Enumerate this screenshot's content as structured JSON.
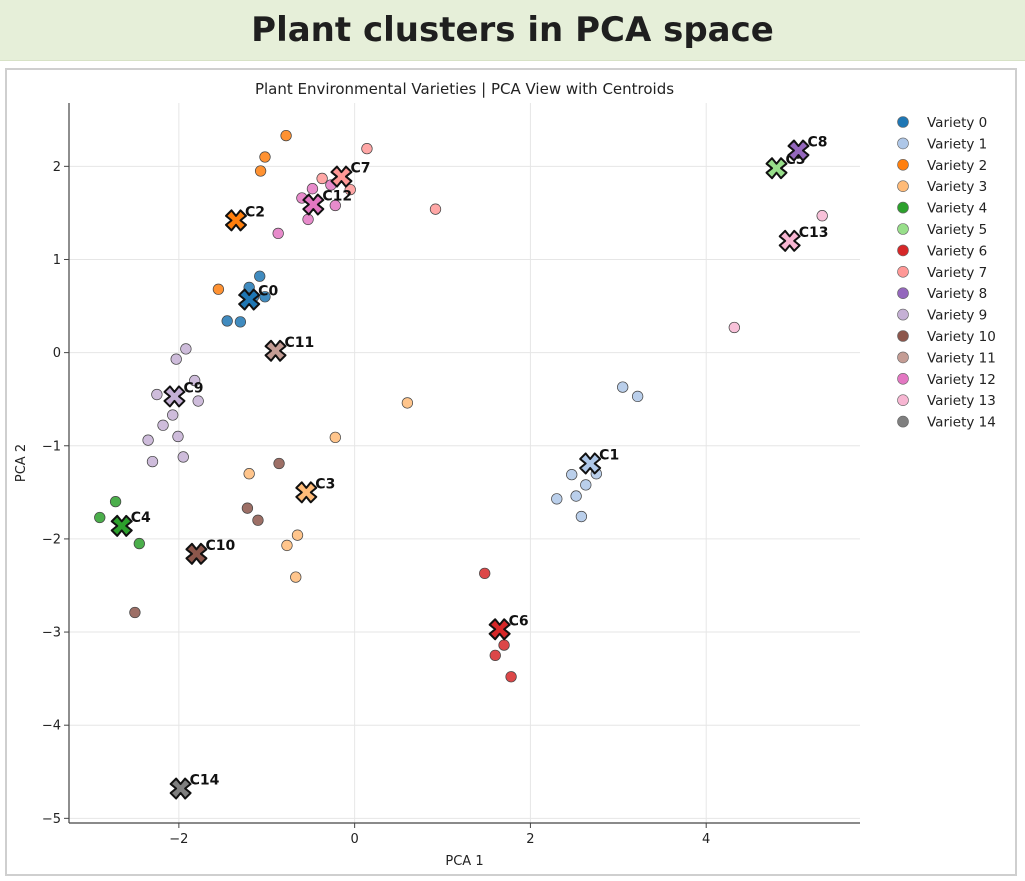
{
  "page": {
    "banner_title": "Plant clusters in PCA space"
  },
  "chart_data": {
    "type": "scatter",
    "title": "Plant Environmental Varieties | PCA View with Centroids",
    "xlabel": "PCA 1",
    "ylabel": "PCA 2",
    "xlim": [
      -3.25,
      5.75
    ],
    "ylim": [
      -5.05,
      2.68
    ],
    "xticks": [
      -2,
      0,
      2,
      4
    ],
    "yticks": [
      -5,
      -4,
      -3,
      -2,
      -1,
      0,
      1,
      2
    ],
    "grid": true,
    "legend_position": "right",
    "series": [
      {
        "name": "Variety 0",
        "color": "#1f77b4",
        "centroid_label": "C0",
        "centroid": [
          -1.2,
          0.57
        ],
        "points": [
          [
            -1.08,
            0.82
          ],
          [
            -1.2,
            0.7
          ],
          [
            -1.45,
            0.34
          ],
          [
            -1.3,
            0.33
          ],
          [
            -1.02,
            0.6
          ],
          [
            -1.15,
            0.6
          ]
        ]
      },
      {
        "name": "Variety 1",
        "color": "#aec7e8",
        "centroid_label": "C1",
        "centroid": [
          2.68,
          -1.19
        ],
        "points": [
          [
            3.05,
            -0.37
          ],
          [
            3.22,
            -0.47
          ],
          [
            2.47,
            -1.31
          ],
          [
            2.63,
            -1.42
          ],
          [
            2.52,
            -1.54
          ],
          [
            2.3,
            -1.57
          ],
          [
            2.58,
            -1.76
          ],
          [
            2.75,
            -1.3
          ]
        ]
      },
      {
        "name": "Variety 2",
        "color": "#ff7f0e",
        "centroid_label": "C2",
        "centroid": [
          -1.35,
          1.42
        ],
        "points": [
          [
            -0.78,
            2.33
          ],
          [
            -1.02,
            2.1
          ],
          [
            -1.07,
            1.95
          ],
          [
            -1.55,
            0.68
          ]
        ]
      },
      {
        "name": "Variety 3",
        "color": "#ffbb78",
        "centroid_label": "C3",
        "centroid": [
          -0.55,
          -1.5
        ],
        "points": [
          [
            0.6,
            -0.54
          ],
          [
            -0.22,
            -0.91
          ],
          [
            -1.2,
            -1.3
          ],
          [
            -0.65,
            -1.96
          ],
          [
            -0.77,
            -2.07
          ],
          [
            -0.67,
            -2.41
          ]
        ]
      },
      {
        "name": "Variety 4",
        "color": "#2ca02c",
        "centroid_label": "C4",
        "centroid": [
          -2.65,
          -1.86
        ],
        "points": [
          [
            -2.72,
            -1.6
          ],
          [
            -2.9,
            -1.77
          ],
          [
            -2.45,
            -2.05
          ]
        ]
      },
      {
        "name": "Variety 5",
        "color": "#98df8a",
        "centroid_label": "C5",
        "centroid": [
          4.8,
          1.98
        ],
        "points": []
      },
      {
        "name": "Variety 6",
        "color": "#d62728",
        "centroid_label": "C6",
        "centroid": [
          1.65,
          -2.97
        ],
        "points": [
          [
            1.48,
            -2.37
          ],
          [
            1.7,
            -3.14
          ],
          [
            1.6,
            -3.25
          ],
          [
            1.78,
            -3.48
          ]
        ]
      },
      {
        "name": "Variety 7",
        "color": "#ff9896",
        "centroid_label": "C7",
        "centroid": [
          -0.15,
          1.89
        ],
        "points": [
          [
            0.14,
            2.19
          ],
          [
            -0.37,
            1.87
          ],
          [
            -0.05,
            1.75
          ],
          [
            0.92,
            1.54
          ]
        ]
      },
      {
        "name": "Variety 8",
        "color": "#9467bd",
        "centroid_label": "C8",
        "centroid": [
          5.05,
          2.17
        ],
        "points": []
      },
      {
        "name": "Variety 9",
        "color": "#c5b0d5",
        "centroid_label": "C9",
        "centroid": [
          -2.05,
          -0.47
        ],
        "points": [
          [
            -1.92,
            0.04
          ],
          [
            -2.03,
            -0.07
          ],
          [
            -1.82,
            -0.3
          ],
          [
            -2.25,
            -0.45
          ],
          [
            -1.78,
            -0.52
          ],
          [
            -2.07,
            -0.67
          ],
          [
            -2.18,
            -0.78
          ],
          [
            -2.01,
            -0.9
          ],
          [
            -2.35,
            -0.94
          ],
          [
            -1.95,
            -1.12
          ],
          [
            -2.3,
            -1.17
          ]
        ]
      },
      {
        "name": "Variety 10",
        "color": "#8c564b",
        "centroid_label": "C10",
        "centroid": [
          -1.8,
          -2.16
        ],
        "points": [
          [
            -0.86,
            -1.19
          ],
          [
            -1.22,
            -1.67
          ],
          [
            -1.1,
            -1.8
          ],
          [
            -2.5,
            -2.79
          ]
        ]
      },
      {
        "name": "Variety 11",
        "color": "#c49c94",
        "centroid_label": "C11",
        "centroid": [
          -0.9,
          0.02
        ],
        "points": []
      },
      {
        "name": "Variety 12",
        "color": "#e377c2",
        "centroid_label": "C12",
        "centroid": [
          -0.47,
          1.59
        ],
        "points": [
          [
            -0.48,
            1.76
          ],
          [
            -0.6,
            1.66
          ],
          [
            -0.27,
            1.8
          ],
          [
            -0.53,
            1.43
          ],
          [
            -0.22,
            1.58
          ],
          [
            -0.87,
            1.28
          ]
        ]
      },
      {
        "name": "Variety 13",
        "color": "#f7b6d2",
        "centroid_label": "C13",
        "centroid": [
          4.95,
          1.2
        ],
        "points": [
          [
            5.32,
            1.47
          ],
          [
            4.32,
            0.27
          ]
        ]
      },
      {
        "name": "Variety 14",
        "color": "#7f7f7f",
        "centroid_label": "C14",
        "centroid": [
          -1.98,
          -4.68
        ],
        "points": []
      }
    ]
  }
}
